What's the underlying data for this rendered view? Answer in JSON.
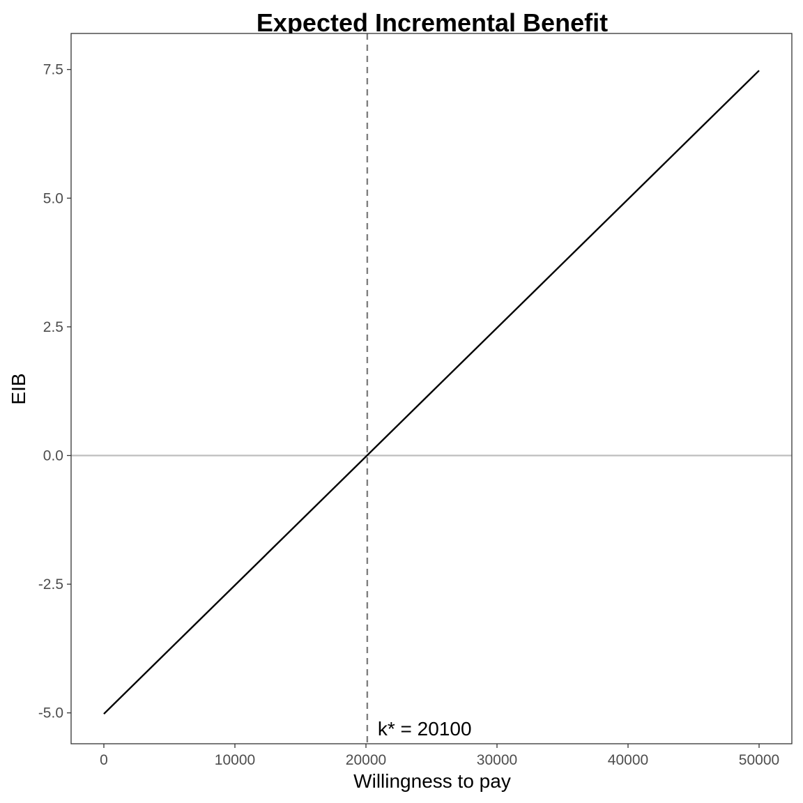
{
  "chart_data": {
    "type": "line",
    "title": "Expected Incremental Benefit",
    "xlabel": "Willingness to pay",
    "ylabel": "EIB",
    "xlim": [
      -2500,
      52500
    ],
    "ylim": [
      -5.6,
      8.2
    ],
    "x_ticks": [
      0,
      10000,
      20000,
      30000,
      40000,
      50000
    ],
    "x_tick_labels": [
      "0",
      "10000",
      "20000",
      "30000",
      "40000",
      "50000"
    ],
    "y_ticks": [
      -5.0,
      -2.5,
      0.0,
      2.5,
      5.0,
      7.5
    ],
    "y_tick_labels": [
      "-5.0",
      "-2.5",
      "0.0",
      "2.5",
      "5.0",
      "7.5"
    ],
    "grid": false,
    "series": [
      {
        "x": [
          0,
          50000
        ],
        "y": [
          -5.02,
          7.48
        ],
        "color": "#000000"
      }
    ],
    "hline": {
      "y": 0,
      "color": "#bebebe"
    },
    "vline": {
      "x": 20100,
      "color": "#7f7f7f",
      "style": "dashed"
    },
    "annotation": {
      "text": "k* = 20100",
      "x": 20100,
      "y": -5.3
    }
  }
}
